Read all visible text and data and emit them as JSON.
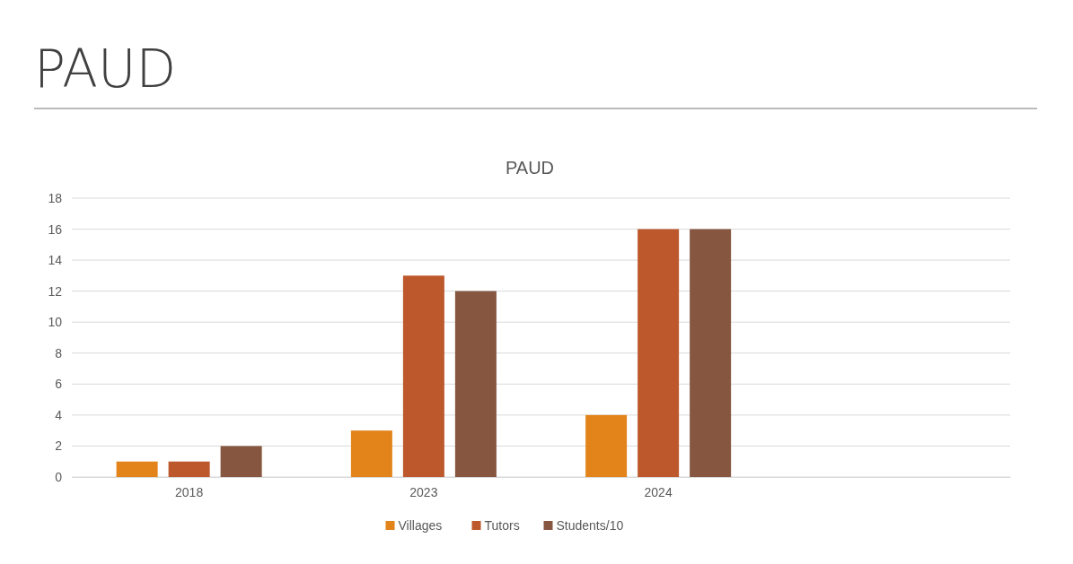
{
  "chart_data": {
    "type": "bar",
    "title": "PAUD",
    "subtitle": "PAUD",
    "categories": [
      "2018",
      "2023",
      "2024",
      null
    ],
    "series": [
      {
        "name": "Villages",
        "color": "#e3841a",
        "values": [
          1,
          3,
          4,
          null
        ]
      },
      {
        "name": "Tutors",
        "color": "#bd582c",
        "values": [
          1,
          13,
          16,
          null
        ]
      },
      {
        "name": "Students/10",
        "color": "#865640",
        "values": [
          2,
          12,
          16,
          null
        ]
      }
    ],
    "ylim": [
      0,
      18
    ],
    "yticks": [
      0,
      2,
      4,
      6,
      8,
      10,
      12,
      14,
      16,
      18
    ],
    "grid": "y",
    "legend": "bottom"
  }
}
